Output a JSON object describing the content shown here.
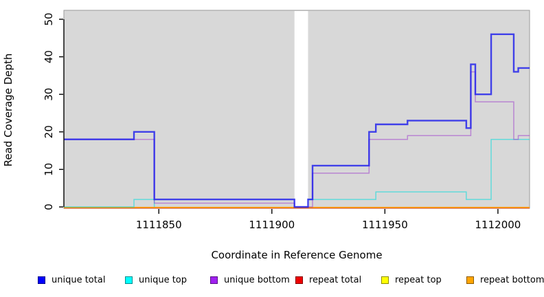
{
  "chart_data": {
    "type": "line",
    "subtype": "step-coverage",
    "title": "",
    "xlabel": "Coordinate in Reference Genome",
    "ylabel": "Read Coverage Depth",
    "xlim": [
      1111808,
      1112014
    ],
    "ylim": [
      0,
      52
    ],
    "x_ticks": [
      1111850,
      1111900,
      1111950,
      1112000
    ],
    "y_ticks": [
      0,
      10,
      20,
      30,
      40,
      50
    ],
    "grid": false,
    "panel_background": "#d8d8d8",
    "gap_region": {
      "start": 1111910,
      "end": 1111916
    },
    "series": [
      {
        "name": "unique total",
        "color": "#1a1aee",
        "line_opacity": 0.8,
        "line_width": 2.4,
        "segments": [
          [
            [
              1111808,
              18
            ],
            [
              1111839,
              20
            ],
            [
              1111848,
              2
            ],
            [
              1111910,
              0
            ],
            [
              1111916,
              2
            ],
            [
              1111918,
              11
            ],
            [
              1111943,
              20
            ],
            [
              1111946,
              22
            ],
            [
              1111960,
              23
            ],
            [
              1111986,
              21
            ],
            [
              1111988,
              38
            ],
            [
              1111990,
              30
            ],
            [
              1111997,
              46
            ],
            [
              1112007,
              36
            ],
            [
              1112009,
              37
            ],
            [
              1112014,
              37
            ]
          ]
        ]
      },
      {
        "name": "unique top",
        "color": "#00dddd",
        "line_opacity": 0.55,
        "line_width": 1.5,
        "segments": [
          [
            [
              1111808,
              0
            ],
            [
              1111839,
              2
            ],
            [
              1111848,
              0
            ]
          ],
          [
            [
              1111916,
              2
            ],
            [
              1111946,
              4
            ],
            [
              1111986,
              2
            ],
            [
              1111997,
              18
            ],
            [
              1112014,
              18
            ]
          ]
        ]
      },
      {
        "name": "unique bottom",
        "color": "#9932cc",
        "line_opacity": 0.5,
        "line_width": 1.5,
        "segments": [
          [
            [
              1111808,
              18
            ],
            [
              1111848,
              1
            ],
            [
              1111910,
              0
            ],
            [
              1111918,
              9
            ],
            [
              1111943,
              18
            ],
            [
              1111960,
              19
            ],
            [
              1111988,
              36
            ],
            [
              1111990,
              28
            ],
            [
              1112007,
              18
            ],
            [
              1112009,
              19
            ],
            [
              1112014,
              19
            ]
          ]
        ]
      },
      {
        "name": "repeat total",
        "color": "#e00000",
        "line_opacity": 0.55,
        "line_width": 1.4,
        "segments": [
          [
            [
              1111808,
              0
            ],
            [
              1112014,
              0
            ]
          ]
        ]
      },
      {
        "name": "repeat top",
        "color": "#ffff00",
        "line_opacity": 0.8,
        "line_width": 1.4,
        "segments": [
          [
            [
              1111808,
              0
            ],
            [
              1112014,
              0
            ]
          ]
        ]
      },
      {
        "name": "repeat bottom",
        "color": "#ff9d00",
        "line_opacity": 1.0,
        "line_width": 1.5,
        "segments": [
          [
            [
              1111808,
              0
            ],
            [
              1112014,
              0
            ]
          ]
        ]
      }
    ],
    "legend_position": "bottom"
  },
  "legend": {
    "items": [
      {
        "label": "unique total",
        "color": "#0000ff"
      },
      {
        "label": "unique top",
        "color": "#00ffff"
      },
      {
        "label": "unique bottom",
        "color": "#a020f0"
      },
      {
        "label": "repeat total",
        "color": "#ee0000"
      },
      {
        "label": "repeat top",
        "color": "#ffff00"
      },
      {
        "label": "repeat bottom",
        "color": "#ffa500"
      }
    ]
  }
}
